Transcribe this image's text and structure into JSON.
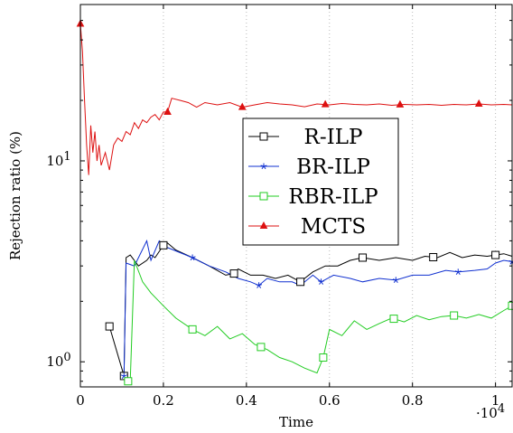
{
  "chart_data": {
    "type": "line",
    "title": "",
    "xlabel": "Time",
    "ylabel": "Rejection ratio (%)",
    "x_multiplier_label": "·10",
    "x_multiplier_exp": "4",
    "xlim": [
      0,
      10400
    ],
    "ylim": [
      0.75,
      60
    ],
    "y_scale": "log",
    "grid": "vertical-dotted",
    "legend_position": "center-right",
    "x_ticks": [
      0,
      2000,
      4000,
      6000,
      8000,
      10000
    ],
    "x_tick_labels": [
      "0",
      "0.2",
      "0.4",
      "0.6",
      "0.8",
      "1"
    ],
    "y_ticks": [
      1,
      10
    ],
    "y_tick_labels_base": [
      "10",
      "10"
    ],
    "y_tick_labels_exp": [
      "0",
      "1"
    ],
    "series": [
      {
        "name": "R-ILP",
        "color": "#000000",
        "marker": "square",
        "x": [
          700,
          1050,
          1100,
          1200,
          1400,
          1600,
          1700,
          1800,
          2000,
          2100,
          2300,
          2700,
          3100,
          3500,
          3700,
          3800,
          4100,
          4400,
          4700,
          5000,
          5300,
          5400,
          5600,
          5900,
          6200,
          6500,
          6800,
          7200,
          7600,
          8000,
          8300,
          8600,
          8900,
          9200,
          9500,
          9800,
          10000,
          10200,
          10400
        ],
        "y": [
          1.5,
          0.85,
          3.3,
          3.4,
          3.0,
          3.2,
          3.4,
          3.3,
          3.8,
          3.9,
          3.6,
          3.3,
          3.0,
          2.7,
          2.75,
          2.9,
          2.7,
          2.7,
          2.6,
          2.7,
          2.5,
          2.6,
          2.8,
          3.0,
          3.0,
          3.2,
          3.3,
          3.2,
          3.3,
          3.2,
          3.35,
          3.3,
          3.5,
          3.3,
          3.4,
          3.35,
          3.4,
          3.45,
          3.35
        ],
        "marker_x": [
          700,
          1050,
          2000,
          3700,
          5300,
          6800,
          8500,
          10000
        ]
      },
      {
        "name": "BR-ILP",
        "color": "#1030d0",
        "marker": "star",
        "x": [
          1050,
          1100,
          1300,
          1600,
          1700,
          1900,
          2100,
          2700,
          3100,
          3500,
          3800,
          4100,
          4300,
          4500,
          4800,
          5100,
          5300,
          5600,
          5800,
          6100,
          6500,
          6800,
          7200,
          7600,
          8000,
          8400,
          8800,
          9100,
          9500,
          9800,
          10000,
          10200,
          10400
        ],
        "y": [
          0.85,
          3.1,
          3.0,
          4.0,
          3.2,
          4.0,
          3.7,
          3.3,
          3.0,
          2.8,
          2.6,
          2.5,
          2.4,
          2.6,
          2.5,
          2.5,
          2.4,
          2.7,
          2.5,
          2.7,
          2.6,
          2.5,
          2.6,
          2.55,
          2.7,
          2.7,
          2.85,
          2.8,
          2.85,
          2.9,
          3.1,
          3.2,
          3.15
        ],
        "marker_x": [
          1050,
          2700,
          4300,
          5800,
          7600,
          9100,
          10400
        ]
      },
      {
        "name": "RBR-ILP",
        "color": "#22cc22",
        "marker": "square",
        "x": [
          1050,
          1200,
          1300,
          1500,
          1700,
          2000,
          2300,
          2700,
          3000,
          3300,
          3600,
          3900,
          4200,
          4500,
          4800,
          5100,
          5400,
          5700,
          5850,
          6000,
          6300,
          6600,
          6900,
          7200,
          7500,
          7800,
          8100,
          8400,
          8700,
          9000,
          9300,
          9600,
          9900,
          10200,
          10400
        ],
        "y": [
          0.8,
          0.8,
          3.2,
          2.5,
          2.2,
          1.9,
          1.65,
          1.45,
          1.35,
          1.5,
          1.3,
          1.38,
          1.22,
          1.15,
          1.05,
          1.0,
          0.93,
          0.88,
          1.05,
          1.45,
          1.35,
          1.6,
          1.45,
          1.55,
          1.65,
          1.58,
          1.7,
          1.62,
          1.68,
          1.7,
          1.65,
          1.72,
          1.65,
          1.8,
          1.9
        ],
        "marker_x": [
          1150,
          2700,
          4350,
          5850,
          7550,
          9000,
          10400
        ]
      },
      {
        "name": "MCTS",
        "color": "#dd1111",
        "marker": "triangle",
        "x": [
          0,
          50,
          100,
          150,
          200,
          250,
          300,
          350,
          400,
          450,
          500,
          600,
          700,
          800,
          900,
          1000,
          1100,
          1200,
          1300,
          1400,
          1500,
          1600,
          1700,
          1800,
          1900,
          2000,
          2100,
          2200,
          2400,
          2600,
          2800,
          3000,
          3300,
          3600,
          3900,
          4200,
          4500,
          4800,
          5100,
          5400,
          5700,
          6000,
          6300,
          6600,
          6900,
          7200,
          7500,
          7800,
          8100,
          8400,
          8700,
          9000,
          9300,
          9600,
          9900,
          10200,
          10400
        ],
        "y": [
          48,
          35,
          20,
          12,
          8.5,
          15,
          11,
          14,
          10,
          12,
          9.5,
          11,
          9,
          12,
          13,
          12.5,
          14,
          13.5,
          15.5,
          14.5,
          16,
          15.5,
          16.5,
          17,
          16,
          17.5,
          17.5,
          20.5,
          20,
          19.5,
          18.5,
          19.5,
          19,
          19.5,
          18.5,
          19,
          19.5,
          19.2,
          19,
          18.6,
          19.2,
          19,
          19.3,
          19.1,
          19,
          19.2,
          18.9,
          19.1,
          19,
          19.1,
          18.9,
          19.1,
          19,
          19.2,
          19,
          19.1,
          19
        ],
        "marker_x": [
          0,
          2100,
          3900,
          5900,
          7700,
          9600
        ]
      }
    ]
  }
}
